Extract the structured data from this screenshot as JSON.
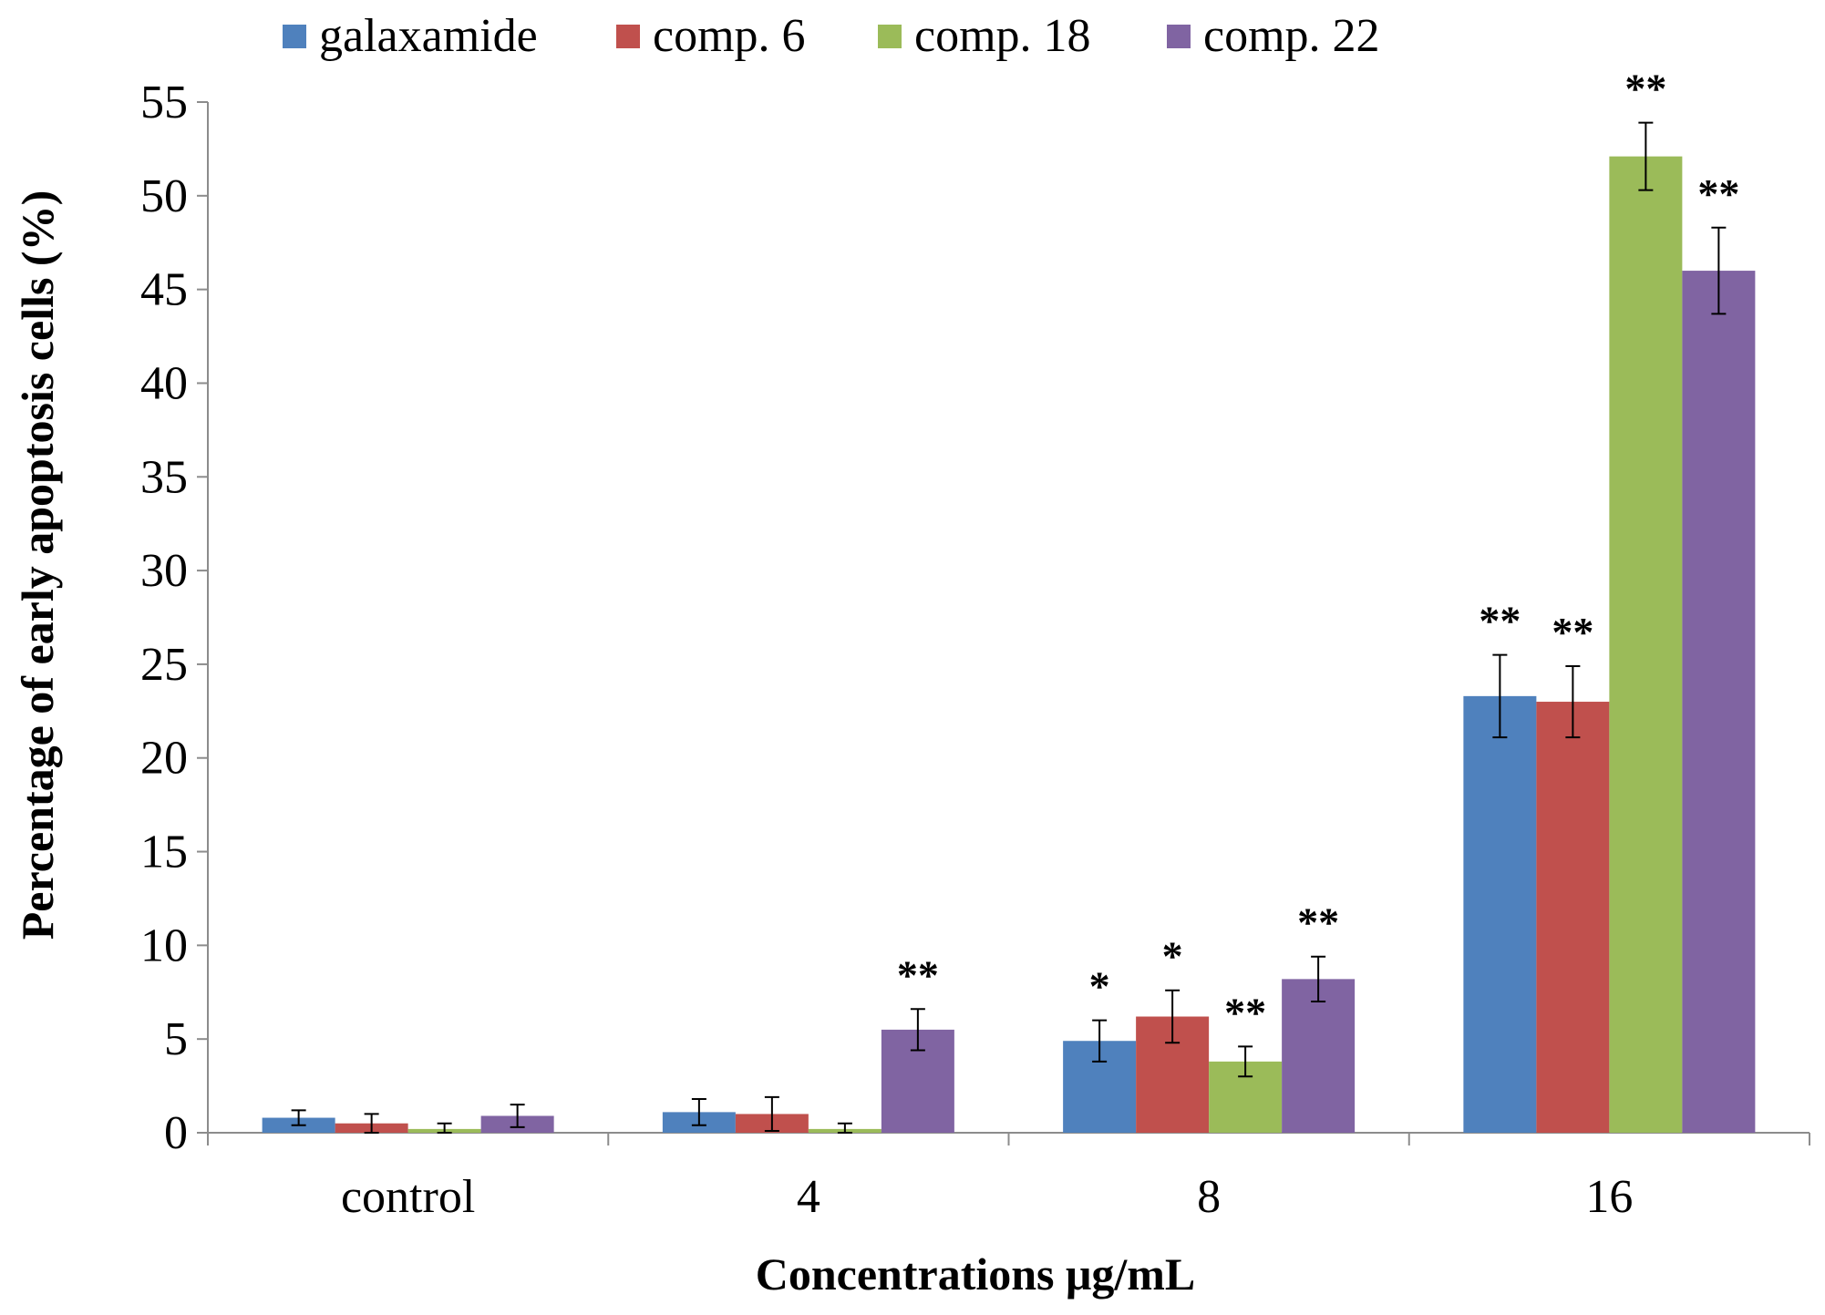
{
  "chart_data": {
    "type": "bar",
    "title": "",
    "xlabel": "Concentrations μg/mL",
    "ylabel": "Percentage of early apoptosis cells (%)",
    "ylim": [
      0,
      55
    ],
    "yticks": [
      0,
      5,
      10,
      15,
      20,
      25,
      30,
      35,
      40,
      45,
      50,
      55
    ],
    "grid": false,
    "legend_position": "top",
    "categories": [
      "control",
      "4",
      "8",
      "16"
    ],
    "series": [
      {
        "name": "galaxamide",
        "color": "#4F81BD",
        "values": [
          0.8,
          1.1,
          4.9,
          23.3
        ],
        "errors": [
          0.4,
          0.7,
          1.1,
          2.2
        ],
        "significance": [
          "",
          "",
          "*",
          "**"
        ]
      },
      {
        "name": "comp. 6",
        "color": "#C0504D",
        "values": [
          0.5,
          1.0,
          6.2,
          23.0
        ],
        "errors": [
          0.5,
          0.9,
          1.4,
          1.9
        ],
        "significance": [
          "",
          "",
          "*",
          "**"
        ]
      },
      {
        "name": "comp. 18",
        "color": "#9BBB59",
        "values": [
          0.2,
          0.2,
          3.8,
          52.1
        ],
        "errors": [
          0.3,
          0.3,
          0.8,
          1.8
        ],
        "significance": [
          "",
          "",
          "**",
          "**"
        ]
      },
      {
        "name": "comp. 22",
        "color": "#8064A2",
        "values": [
          0.9,
          5.5,
          8.2,
          46.0
        ],
        "errors": [
          0.6,
          1.1,
          1.2,
          2.3
        ],
        "significance": [
          "",
          "**",
          "**",
          "**"
        ]
      }
    ]
  }
}
